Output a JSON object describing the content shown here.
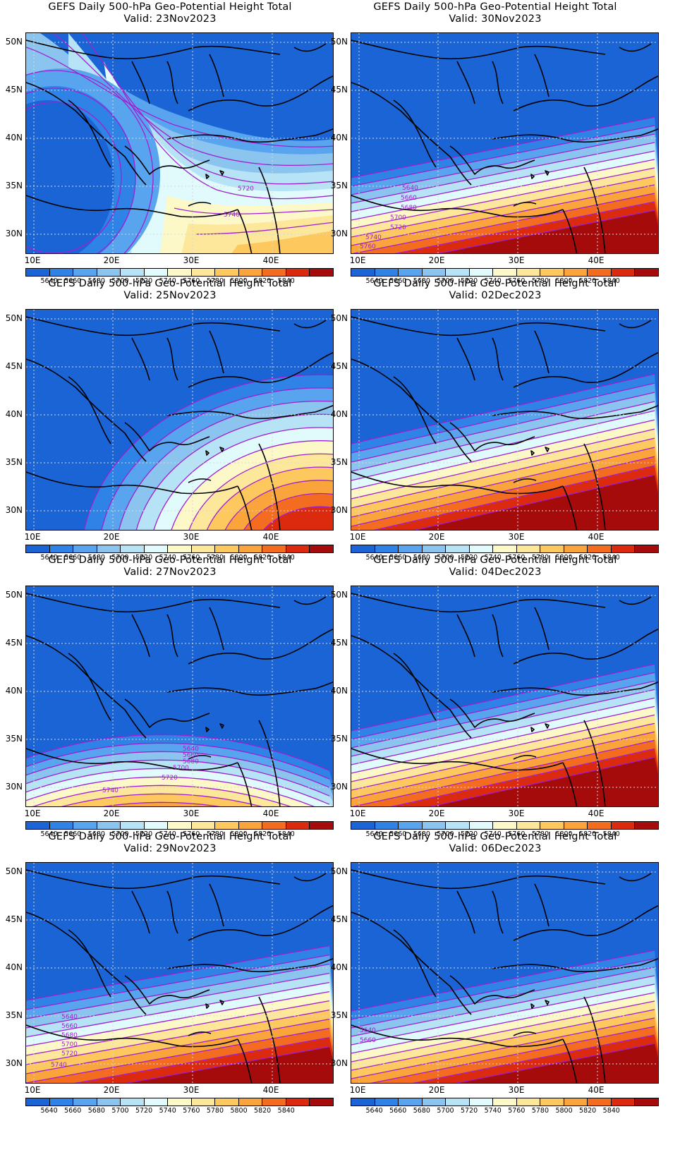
{
  "title_prefix": "GEFS Daily 500-hPa Geo-Potential Height Total",
  "valid_prefix": "Valid: ",
  "lat_labels": [
    "50N",
    "45N",
    "40N",
    "35N",
    "30N"
  ],
  "lon_labels": [
    "10E",
    "20E",
    "30E",
    "40E"
  ],
  "colorbar": {
    "colors": [
      "#1a64d6",
      "#2f82e6",
      "#58a4ee",
      "#8cc4f0",
      "#b7e3f6",
      "#e1fafc",
      "#fdf8c8",
      "#fde79b",
      "#fdc95f",
      "#f9a53c",
      "#f36c1f",
      "#dc2a0e",
      "#a50b0b"
    ],
    "labels": [
      "5640",
      "5660",
      "5680",
      "5700",
      "5720",
      "5740",
      "5760",
      "5780",
      "5800",
      "5820",
      "5840"
    ]
  },
  "panels": [
    {
      "valid": "23Nov2023",
      "contour_labels": [
        "5720",
        "5740"
      ]
    },
    {
      "valid": "30Nov2023",
      "contour_labels": [
        "5640",
        "5660",
        "5680",
        "5700",
        "5720",
        "5740",
        "5760"
      ]
    },
    {
      "valid": "25Nov2023",
      "contour_labels": []
    },
    {
      "valid": "02Dec2023",
      "contour_labels": []
    },
    {
      "valid": "27Nov2023",
      "contour_labels": [
        "5640",
        "5660",
        "5680",
        "5700",
        "5720",
        "5740"
      ]
    },
    {
      "valid": "04Dec2023",
      "contour_labels": []
    },
    {
      "valid": "29Nov2023",
      "contour_labels": [
        "5640",
        "5660",
        "5680",
        "5700",
        "5720",
        "5740"
      ]
    },
    {
      "valid": "06Dec2023",
      "contour_labels": [
        "5640",
        "5660"
      ]
    }
  ]
}
